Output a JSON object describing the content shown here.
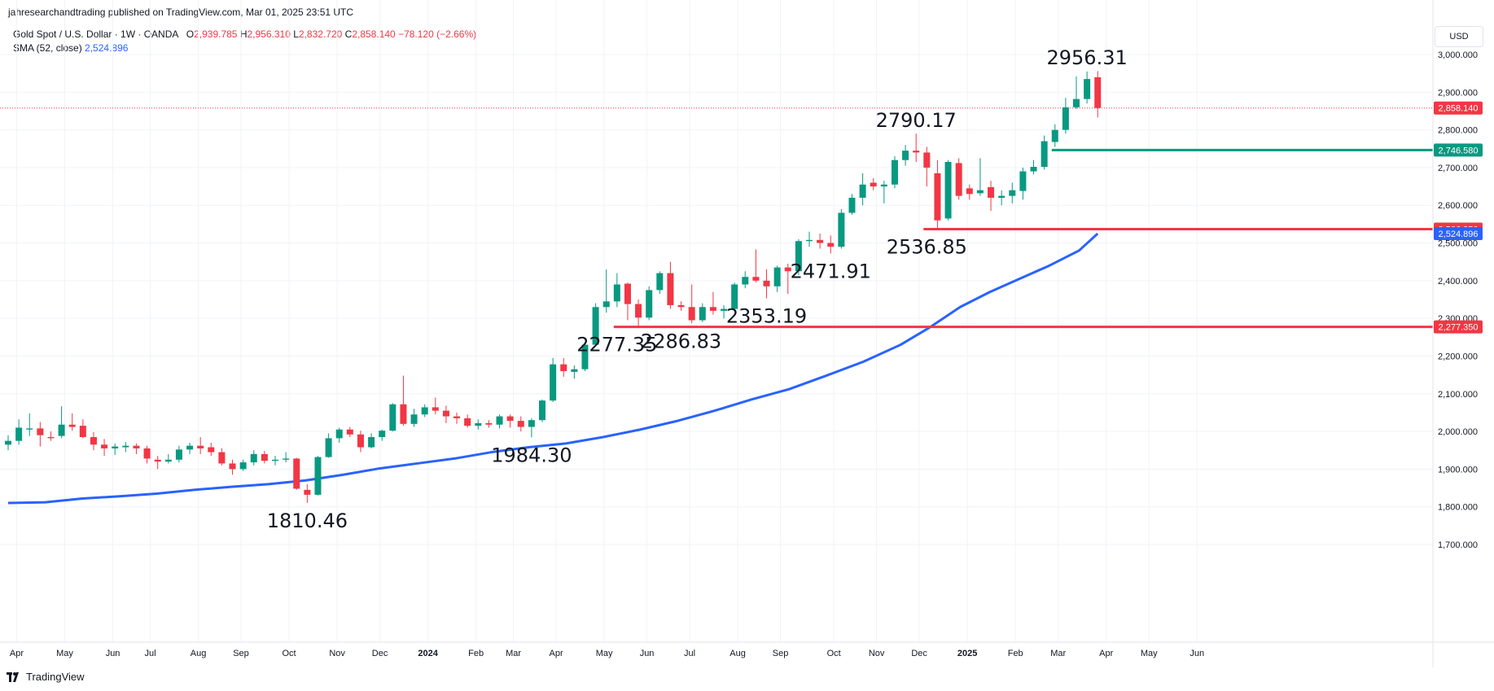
{
  "header": {
    "caption": "jahresearchandtrading published on TradingView.com, Mar 01, 2025 23:51 UTC"
  },
  "legend": {
    "symbol": "Gold Spot / U.S. Dollar · 1W · OANDA",
    "open_label": "O",
    "open": "2,939.785",
    "high_label": "H",
    "high": "2,956.310",
    "low_label": "L",
    "low": "2,832.720",
    "close_label": "C",
    "close": "2,858.140",
    "change": "−78.120 (−2.66%)",
    "sma_label": "SMA (52, close)",
    "sma_value": "2,524.896"
  },
  "currency_button": "USD",
  "footer": {
    "brand": "TradingView"
  },
  "colors": {
    "up": "#089981",
    "down": "#f23645",
    "sma": "#2962ff",
    "grid": "#f0f3fa",
    "axis_text": "#131722"
  },
  "chart_data": {
    "type": "candlestick",
    "symbol": "Gold Spot / U.S. Dollar",
    "interval": "1W",
    "ylim": [
      1700,
      3000
    ],
    "y_ticks": [
      1700,
      1800,
      1900,
      2000,
      2100,
      2200,
      2300,
      2400,
      2500,
      2600,
      2700,
      2800,
      2900,
      3000
    ],
    "y_tick_labels": [
      "1,700.000",
      "1,800.000",
      "1,900.000",
      "2,000.000",
      "2,100.000",
      "2,200.000",
      "2,300.000",
      "2,400.000",
      "2,500.000",
      "2,600.000",
      "2,700.000",
      "2,800.000",
      "2,900.000",
      "3,000.000"
    ],
    "x_ticks": [
      {
        "label": "Apr",
        "week": 0.8
      },
      {
        "label": "May",
        "week": 5.3
      },
      {
        "label": "Jun",
        "week": 9.8
      },
      {
        "label": "Jul",
        "week": 13.3
      },
      {
        "label": "Aug",
        "week": 17.8
      },
      {
        "label": "Sep",
        "week": 21.8
      },
      {
        "label": "Oct",
        "week": 26.3
      },
      {
        "label": "Nov",
        "week": 30.8
      },
      {
        "label": "Dec",
        "week": 34.8
      },
      {
        "label": "2024",
        "week": 39.3,
        "bold": true
      },
      {
        "label": "Feb",
        "week": 43.8
      },
      {
        "label": "Mar",
        "week": 47.3
      },
      {
        "label": "Apr",
        "week": 51.3
      },
      {
        "label": "May",
        "week": 55.8
      },
      {
        "label": "Jun",
        "week": 59.8
      },
      {
        "label": "Jul",
        "week": 63.8
      },
      {
        "label": "Aug",
        "week": 68.3
      },
      {
        "label": "Sep",
        "week": 72.3
      },
      {
        "label": "Oct",
        "week": 77.3
      },
      {
        "label": "Nov",
        "week": 81.3
      },
      {
        "label": "Dec",
        "week": 85.3
      },
      {
        "label": "2025",
        "week": 89.8,
        "bold": true
      },
      {
        "label": "Feb",
        "week": 94.3
      },
      {
        "label": "Mar",
        "week": 98.3
      },
      {
        "label": "Apr",
        "week": 102.8
      },
      {
        "label": "May",
        "week": 106.8
      },
      {
        "label": "Jun",
        "week": 111.3
      }
    ],
    "candles": [
      {
        "o": 1965,
        "h": 1990,
        "l": 1950,
        "c": 1975
      },
      {
        "o": 1975,
        "h": 2032,
        "l": 1965,
        "c": 2010
      },
      {
        "o": 2005,
        "h": 2048,
        "l": 1988,
        "c": 2008
      },
      {
        "o": 2008,
        "h": 2025,
        "l": 1960,
        "c": 1990
      },
      {
        "o": 1985,
        "h": 2000,
        "l": 1975,
        "c": 1982
      },
      {
        "o": 1988,
        "h": 2067,
        "l": 1982,
        "c": 2018
      },
      {
        "o": 2018,
        "h": 2048,
        "l": 2002,
        "c": 2012
      },
      {
        "o": 2015,
        "h": 2032,
        "l": 1982,
        "c": 1985
      },
      {
        "o": 1985,
        "h": 1998,
        "l": 1950,
        "c": 1965
      },
      {
        "o": 1965,
        "h": 1980,
        "l": 1935,
        "c": 1955
      },
      {
        "o": 1955,
        "h": 1968,
        "l": 1938,
        "c": 1960
      },
      {
        "o": 1958,
        "h": 1972,
        "l": 1945,
        "c": 1962
      },
      {
        "o": 1962,
        "h": 1968,
        "l": 1940,
        "c": 1955
      },
      {
        "o": 1955,
        "h": 1962,
        "l": 1915,
        "c": 1928
      },
      {
        "o": 1925,
        "h": 1935,
        "l": 1900,
        "c": 1920
      },
      {
        "o": 1920,
        "h": 1940,
        "l": 1915,
        "c": 1925
      },
      {
        "o": 1925,
        "h": 1962,
        "l": 1918,
        "c": 1952
      },
      {
        "o": 1952,
        "h": 1970,
        "l": 1940,
        "c": 1962
      },
      {
        "o": 1962,
        "h": 1985,
        "l": 1940,
        "c": 1955
      },
      {
        "o": 1958,
        "h": 1970,
        "l": 1935,
        "c": 1945
      },
      {
        "o": 1945,
        "h": 1955,
        "l": 1910,
        "c": 1915
      },
      {
        "o": 1915,
        "h": 1925,
        "l": 1885,
        "c": 1900
      },
      {
        "o": 1900,
        "h": 1925,
        "l": 1895,
        "c": 1918
      },
      {
        "o": 1918,
        "h": 1950,
        "l": 1910,
        "c": 1940
      },
      {
        "o": 1940,
        "h": 1948,
        "l": 1915,
        "c": 1922
      },
      {
        "o": 1922,
        "h": 1935,
        "l": 1910,
        "c": 1925
      },
      {
        "o": 1925,
        "h": 1945,
        "l": 1918,
        "c": 1928
      },
      {
        "o": 1928,
        "h": 1930,
        "l": 1845,
        "c": 1848
      },
      {
        "o": 1845,
        "h": 1860,
        "l": 1810.46,
        "c": 1832
      },
      {
        "o": 1832,
        "h": 1935,
        "l": 1830,
        "c": 1932
      },
      {
        "o": 1932,
        "h": 1995,
        "l": 1930,
        "c": 1982
      },
      {
        "o": 1982,
        "h": 2010,
        "l": 1970,
        "c": 2005
      },
      {
        "o": 2005,
        "h": 2012,
        "l": 1985,
        "c": 1992
      },
      {
        "o": 1992,
        "h": 2002,
        "l": 1945,
        "c": 1958
      },
      {
        "o": 1958,
        "h": 1995,
        "l": 1955,
        "c": 1985
      },
      {
        "o": 1985,
        "h": 2005,
        "l": 1975,
        "c": 2002
      },
      {
        "o": 2002,
        "h": 2075,
        "l": 2000,
        "c": 2072
      },
      {
        "o": 2072,
        "h": 2148,
        "l": 2015,
        "c": 2020
      },
      {
        "o": 2020,
        "h": 2060,
        "l": 2012,
        "c": 2045
      },
      {
        "o": 2045,
        "h": 2072,
        "l": 2038,
        "c": 2064
      },
      {
        "o": 2064,
        "h": 2090,
        "l": 2045,
        "c": 2055
      },
      {
        "o": 2055,
        "h": 2068,
        "l": 2022,
        "c": 2040
      },
      {
        "o": 2040,
        "h": 2050,
        "l": 2020,
        "c": 2035
      },
      {
        "o": 2035,
        "h": 2045,
        "l": 2010,
        "c": 2015
      },
      {
        "o": 2015,
        "h": 2032,
        "l": 2005,
        "c": 2022
      },
      {
        "o": 2022,
        "h": 2030,
        "l": 2010,
        "c": 2018
      },
      {
        "o": 2018,
        "h": 2045,
        "l": 2008,
        "c": 2040
      },
      {
        "o": 2040,
        "h": 2045,
        "l": 2010,
        "c": 2028
      },
      {
        "o": 2028,
        "h": 2040,
        "l": 2000,
        "c": 2012
      },
      {
        "o": 2012,
        "h": 2035,
        "l": 1984.3,
        "c": 2030
      },
      {
        "o": 2030,
        "h": 2085,
        "l": 2025,
        "c": 2082
      },
      {
        "o": 2082,
        "h": 2195,
        "l": 2078,
        "c": 2178
      },
      {
        "o": 2178,
        "h": 2195,
        "l": 2145,
        "c": 2160
      },
      {
        "o": 2158,
        "h": 2175,
        "l": 2140,
        "c": 2165
      },
      {
        "o": 2165,
        "h": 2235,
        "l": 2160,
        "c": 2230
      },
      {
        "o": 2230,
        "h": 2340,
        "l": 2225,
        "c": 2330
      },
      {
        "o": 2330,
        "h": 2430,
        "l": 2315,
        "c": 2345
      },
      {
        "o": 2345,
        "h": 2420,
        "l": 2330,
        "c": 2390
      },
      {
        "o": 2392,
        "h": 2395,
        "l": 2295,
        "c": 2338
      },
      {
        "o": 2338,
        "h": 2350,
        "l": 2277.35,
        "c": 2302
      },
      {
        "o": 2302,
        "h": 2385,
        "l": 2295,
        "c": 2375
      },
      {
        "o": 2375,
        "h": 2425,
        "l": 2365,
        "c": 2420
      },
      {
        "o": 2420,
        "h": 2450,
        "l": 2325,
        "c": 2335
      },
      {
        "o": 2335,
        "h": 2345,
        "l": 2320,
        "c": 2330
      },
      {
        "o": 2330,
        "h": 2390,
        "l": 2286.83,
        "c": 2295
      },
      {
        "o": 2295,
        "h": 2340,
        "l": 2290,
        "c": 2330
      },
      {
        "o": 2330,
        "h": 2370,
        "l": 2310,
        "c": 2320
      },
      {
        "o": 2320,
        "h": 2335,
        "l": 2300,
        "c": 2325
      },
      {
        "o": 2325,
        "h": 2395,
        "l": 2320,
        "c": 2390
      },
      {
        "o": 2390,
        "h": 2425,
        "l": 2380,
        "c": 2410
      },
      {
        "o": 2410,
        "h": 2483,
        "l": 2395,
        "c": 2400
      },
      {
        "o": 2400,
        "h": 2430,
        "l": 2353.19,
        "c": 2385
      },
      {
        "o": 2385,
        "h": 2440,
        "l": 2370,
        "c": 2435
      },
      {
        "o": 2435,
        "h": 2445,
        "l": 2365,
        "c": 2425
      },
      {
        "o": 2425,
        "h": 2510,
        "l": 2415,
        "c": 2505
      },
      {
        "o": 2505,
        "h": 2530,
        "l": 2490,
        "c": 2508
      },
      {
        "o": 2508,
        "h": 2525,
        "l": 2485,
        "c": 2500
      },
      {
        "o": 2500,
        "h": 2520,
        "l": 2471.91,
        "c": 2490
      },
      {
        "o": 2490,
        "h": 2590,
        "l": 2485,
        "c": 2580
      },
      {
        "o": 2580,
        "h": 2630,
        "l": 2575,
        "c": 2620
      },
      {
        "o": 2620,
        "h": 2685,
        "l": 2600,
        "c": 2655
      },
      {
        "o": 2660,
        "h": 2672,
        "l": 2640,
        "c": 2650
      },
      {
        "o": 2650,
        "h": 2665,
        "l": 2605,
        "c": 2655
      },
      {
        "o": 2655,
        "h": 2730,
        "l": 2645,
        "c": 2720
      },
      {
        "o": 2720,
        "h": 2760,
        "l": 2705,
        "c": 2745
      },
      {
        "o": 2745,
        "h": 2790.17,
        "l": 2715,
        "c": 2740
      },
      {
        "o": 2740,
        "h": 2755,
        "l": 2650,
        "c": 2700
      },
      {
        "o": 2685,
        "h": 2720,
        "l": 2536.85,
        "c": 2560
      },
      {
        "o": 2565,
        "h": 2720,
        "l": 2560,
        "c": 2715
      },
      {
        "o": 2712,
        "h": 2725,
        "l": 2615,
        "c": 2625
      },
      {
        "o": 2645,
        "h": 2655,
        "l": 2615,
        "c": 2630
      },
      {
        "o": 2632,
        "h": 2725,
        "l": 2625,
        "c": 2640
      },
      {
        "o": 2648,
        "h": 2665,
        "l": 2585,
        "c": 2620
      },
      {
        "o": 2620,
        "h": 2640,
        "l": 2600,
        "c": 2625
      },
      {
        "o": 2625,
        "h": 2660,
        "l": 2605,
        "c": 2640
      },
      {
        "o": 2638,
        "h": 2700,
        "l": 2615,
        "c": 2690
      },
      {
        "o": 2690,
        "h": 2720,
        "l": 2682,
        "c": 2702
      },
      {
        "o": 2702,
        "h": 2785,
        "l": 2695,
        "c": 2770
      },
      {
        "o": 2768,
        "h": 2815,
        "l": 2755,
        "c": 2800
      },
      {
        "o": 2800,
        "h": 2885,
        "l": 2790,
        "c": 2860
      },
      {
        "o": 2860,
        "h": 2942,
        "l": 2855,
        "c": 2882
      },
      {
        "o": 2882,
        "h": 2955,
        "l": 2870,
        "c": 2935
      },
      {
        "o": 2939.785,
        "h": 2956.31,
        "l": 2832.72,
        "c": 2858.14
      }
    ],
    "sma": {
      "name": "SMA (52, close)",
      "points": [
        [
          0,
          1810
        ],
        [
          5,
          1812
        ],
        [
          10,
          1822
        ],
        [
          15,
          1828
        ],
        [
          20,
          1835
        ],
        [
          25,
          1845
        ],
        [
          30,
          1853
        ],
        [
          35,
          1860
        ],
        [
          40,
          1870
        ],
        [
          45,
          1885
        ],
        [
          50,
          1902
        ],
        [
          55,
          1915
        ],
        [
          60,
          1928
        ],
        [
          65,
          1945
        ],
        [
          70,
          1958
        ],
        [
          75,
          1968
        ],
        [
          80,
          1985
        ],
        [
          85,
          2005
        ],
        [
          90,
          2028
        ],
        [
          95,
          2055
        ],
        [
          100,
          2085
        ],
        [
          105,
          2112
        ],
        [
          110,
          2148
        ],
        [
          115,
          2185
        ],
        [
          120,
          2230
        ],
        [
          124,
          2277
        ],
        [
          128,
          2330
        ],
        [
          132,
          2370
        ],
        [
          136,
          2405
        ],
        [
          140,
          2440
        ],
        [
          144,
          2480
        ],
        [
          146.5,
          2524.896
        ]
      ]
    },
    "horizontal_lines": [
      {
        "value": 2746.58,
        "color": "#089981",
        "from_index": 98,
        "label": "2,746.580"
      },
      {
        "value": 2536.85,
        "color": "#f23645",
        "from_index": 86,
        "label": "2,536.850"
      },
      {
        "value": 2277.35,
        "color": "#f23645",
        "from_index": 57,
        "label": "2,277.350"
      }
    ],
    "current_price": {
      "value": 2858.14,
      "label": "2,858.140",
      "color": "#f23645"
    },
    "sma_badge": {
      "value": 2524.896,
      "label": "2,524.896",
      "color": "#2962ff"
    },
    "annotations": [
      {
        "text": "1810.46",
        "index": 28,
        "value": 1810.46,
        "pos": "below"
      },
      {
        "text": "1984.30",
        "index": 49,
        "value": 1984.3,
        "pos": "below"
      },
      {
        "text": "2277.35",
        "index": 57,
        "value": 2277.35,
        "pos": "below"
      },
      {
        "text": "2286.83",
        "index": 63,
        "value": 2286.83,
        "pos": "below"
      },
      {
        "text": "2353.19",
        "index": 71,
        "value": 2353.19,
        "pos": "below"
      },
      {
        "text": "2471.91",
        "index": 77,
        "value": 2471.91,
        "pos": "below"
      },
      {
        "text": "2790.17",
        "index": 85,
        "value": 2790.17,
        "pos": "above"
      },
      {
        "text": "2536.85",
        "index": 86,
        "value": 2536.85,
        "pos": "below"
      },
      {
        "text": "2956.31",
        "index": 101,
        "value": 2956.31,
        "pos": "above"
      }
    ]
  }
}
